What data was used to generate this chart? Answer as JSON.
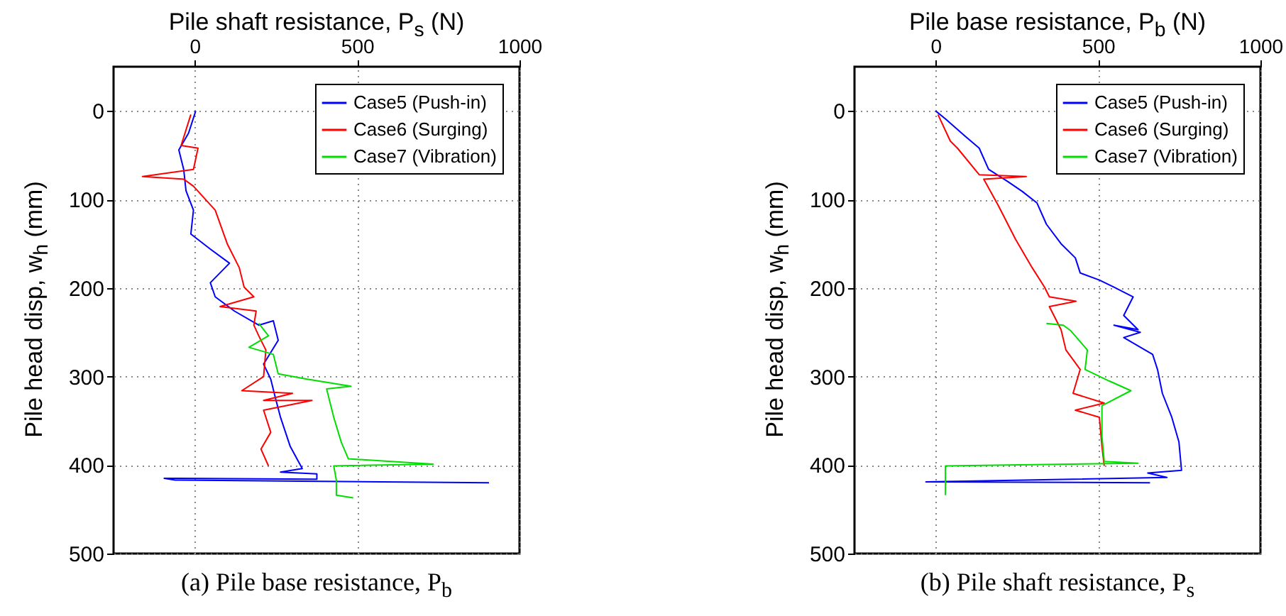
{
  "chart_data": [
    {
      "type": "line",
      "xlabel": "Pile shaft resistance, P$_{s}$ (N)",
      "ylabel": "Pile head disp, w$_{h}$ (mm)",
      "annotations": [
        "(a) Pile base resistance, P$_{b}$"
      ],
      "xlim": [
        -250,
        1000
      ],
      "xticks": [
        0,
        500,
        1000
      ],
      "ylim": [
        500,
        -50
      ],
      "yticks": [
        0,
        100,
        200,
        300,
        400,
        500
      ],
      "grid": true,
      "legend": "top right",
      "series": [
        {
          "name": "Case5 (Push-in)",
          "color": "#0000ff",
          "x": [
            3,
            -19,
            -49,
            -34,
            -27,
            -4,
            -12,
            48,
            107,
            48,
            63,
            122,
            197,
            242,
            257,
            212,
            234,
            249,
            264,
            294,
            331,
            264,
            376,
            376,
            -94,
            -60,
            906
          ],
          "values": [
            0,
            25,
            44,
            66,
            90,
            112,
            139,
            156,
            172,
            194,
            210,
            226,
            242,
            237,
            259,
            286,
            303,
            325,
            346,
            379,
            404,
            408,
            410,
            416,
            415,
            417,
            420
          ]
        },
        {
          "name": "Case6 (Surging)",
          "color": "#ff0000",
          "x": [
            -12,
            -42,
            10,
            -4,
            -161,
            -34,
            -4,
            63,
            100,
            137,
            152,
            182,
            78,
            189,
            182,
            197,
            219,
            212,
            145,
            301,
            212,
            361,
            212,
            234,
            204,
            227
          ],
          "values": [
            4,
            39,
            42,
            66,
            74,
            77,
            85,
            112,
            150,
            177,
            199,
            210,
            221,
            226,
            242,
            254,
            270,
            300,
            316,
            319,
            327,
            327,
            338,
            363,
            382,
            401
          ]
        },
        {
          "name": "Case7 (Vibration)",
          "color": "#00dd00",
          "x": [
            197,
            227,
            167,
            242,
            257,
            346,
            481,
            406,
            428,
            451,
            473,
            734,
            428,
            436,
            436,
            488
          ],
          "values": [
            240,
            254,
            267,
            275,
            297,
            303,
            311,
            314,
            346,
            374,
            393,
            399,
            401,
            417,
            434,
            437
          ]
        }
      ]
    },
    {
      "type": "line",
      "xlabel": "Pile base resistance, P$_{b}$ (N)",
      "ylabel": "Pile head disp, w$_{h}$ (mm)",
      "annotations": [
        "(b) Pile shaft resistance, P$_{s}$"
      ],
      "xlim": [
        -250,
        1000
      ],
      "xticks": [
        0,
        500,
        1000
      ],
      "ylim": [
        500,
        -50
      ],
      "yticks": [
        0,
        100,
        200,
        300,
        400,
        500
      ],
      "grid": true,
      "legend": "top right",
      "series": [
        {
          "name": "Case5 (Push-in)",
          "color": "#0000ff",
          "x": [
            0,
            30,
            89,
            134,
            163,
            223,
            267,
            312,
            341,
            386,
            430,
            445,
            504,
            549,
            608,
            579,
            623,
            549,
            630,
            579,
            668,
            683,
            698,
            727,
            749,
            757,
            653,
            712,
            -30,
            660
          ],
          "values": [
            0,
            9,
            28,
            42,
            66,
            80,
            91,
            104,
            128,
            150,
            166,
            183,
            191,
            199,
            210,
            231,
            247,
            242,
            250,
            256,
            275,
            292,
            319,
            346,
            374,
            406,
            409,
            414,
            419,
            420
          ]
        },
        {
          "name": "Case6 (Surging)",
          "color": "#ff0000",
          "x": [
            7,
            45,
            67,
            134,
            279,
            148,
            193,
            246,
            297,
            335,
            350,
            432,
            350,
            386,
            401,
            445,
            423,
            519,
            430,
            504,
            512,
            519
          ],
          "values": [
            4,
            34,
            42,
            72,
            74,
            77,
            107,
            145,
            177,
            199,
            210,
            215,
            221,
            247,
            270,
            292,
            319,
            330,
            338,
            346,
            379,
            401
          ]
        },
        {
          "name": "Case7 (Vibration)",
          "color": "#00dd00",
          "x": [
            341,
            393,
            415,
            467,
            460,
            534,
            601,
            512,
            512,
            519,
            623,
            30,
            30
          ],
          "values": [
            240,
            242,
            248,
            270,
            292,
            305,
            316,
            333,
            368,
            396,
            398,
            401,
            434
          ]
        }
      ]
    }
  ]
}
